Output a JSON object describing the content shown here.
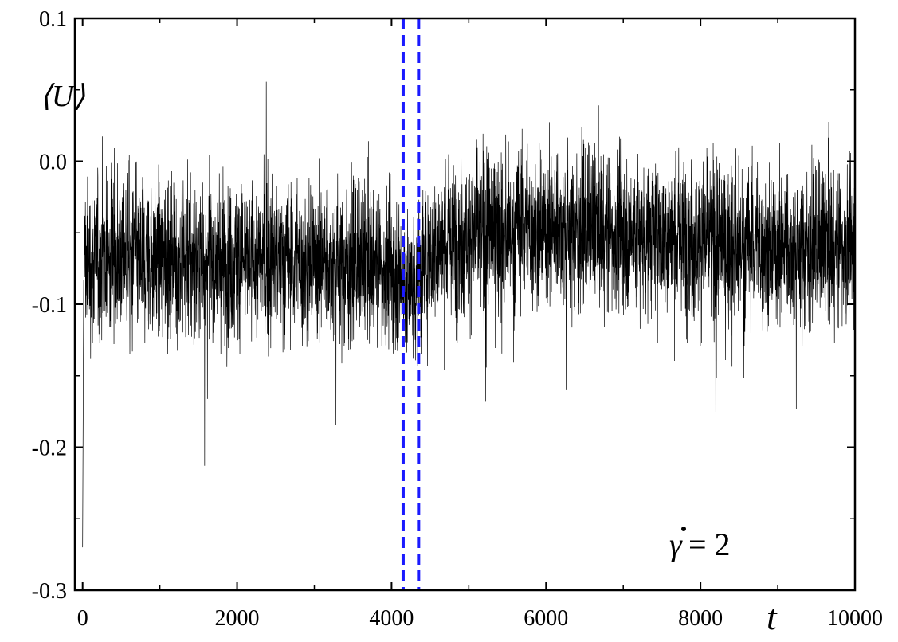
{
  "chart_data": {
    "type": "line",
    "title": "",
    "xlabel": "t",
    "ylabel": "⟨U⟩",
    "xlim": [
      -100,
      10000
    ],
    "ylim": [
      -0.3,
      0.1
    ],
    "x_ticks": [
      0,
      2000,
      4000,
      6000,
      8000,
      10000
    ],
    "x_tick_labels": [
      "0",
      "2000",
      "4000",
      "6000",
      "8000",
      "10000"
    ],
    "y_ticks": [
      -0.3,
      -0.2,
      -0.1,
      0.0,
      0.1
    ],
    "y_tick_labels": [
      "-0.3",
      "-0.2",
      "-0.1",
      "0.0",
      "0.1"
    ],
    "grid": false,
    "series": [
      {
        "color": "#000000",
        "description_points": {
          "t": [
            0,
            500,
            1000,
            2000,
            3000,
            4000,
            4200,
            4300,
            4500,
            5000,
            6000,
            7000,
            8000,
            9000,
            10000
          ],
          "mean": [
            -0.07,
            -0.065,
            -0.068,
            -0.07,
            -0.07,
            -0.075,
            -0.09,
            -0.085,
            -0.065,
            -0.05,
            -0.045,
            -0.05,
            -0.055,
            -0.06,
            -0.06
          ]
        },
        "fluctuation_half_width": 0.07,
        "spike_extent": [
          -0.27,
          0.1
        ]
      }
    ],
    "vlines": [
      {
        "x": 4150,
        "color": "#1a1aff",
        "style": "dashed"
      },
      {
        "x": 4350,
        "color": "#1a1aff",
        "style": "dashed"
      }
    ],
    "annotation": {
      "symbol": "γ",
      "text": " = 2"
    }
  }
}
